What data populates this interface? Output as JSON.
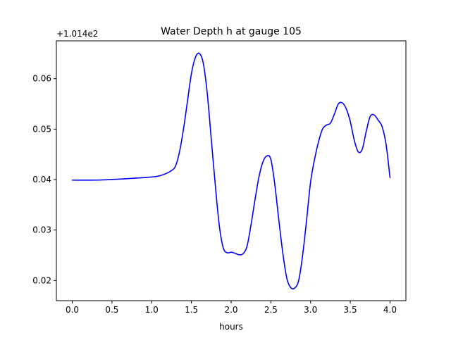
{
  "chart_data": {
    "type": "line",
    "title": "Water Depth h at gauge 105",
    "xlabel": "hours",
    "ylabel": "",
    "offset_label": "+1.014e2",
    "xlim": [
      -0.2,
      4.2
    ],
    "ylim": [
      0.016,
      0.0675
    ],
    "xticks": [
      0.0,
      0.5,
      1.0,
      1.5,
      2.0,
      2.5,
      3.0,
      3.5,
      4.0
    ],
    "xtick_labels": [
      "0.0",
      "0.5",
      "1.0",
      "1.5",
      "2.0",
      "2.5",
      "3.0",
      "3.5",
      "4.0"
    ],
    "yticks": [
      0.02,
      0.03,
      0.04,
      0.05,
      0.06
    ],
    "ytick_labels": [
      "0.02",
      "0.03",
      "0.04",
      "0.05",
      "0.06"
    ],
    "grid": false,
    "legend": "none",
    "series": [
      {
        "color": "#0000ff",
        "x": [
          0.0,
          0.3,
          0.6,
          0.9,
          1.05,
          1.15,
          1.25,
          1.3,
          1.35,
          1.4,
          1.45,
          1.5,
          1.55,
          1.6,
          1.65,
          1.7,
          1.75,
          1.8,
          1.85,
          1.9,
          1.95,
          2.0,
          2.05,
          2.1,
          2.15,
          2.2,
          2.25,
          2.3,
          2.35,
          2.4,
          2.45,
          2.5,
          2.55,
          2.6,
          2.65,
          2.7,
          2.75,
          2.8,
          2.85,
          2.9,
          2.95,
          3.0,
          3.05,
          3.1,
          3.15,
          3.2,
          3.25,
          3.3,
          3.35,
          3.4,
          3.45,
          3.5,
          3.55,
          3.6,
          3.65,
          3.7,
          3.75,
          3.8,
          3.85,
          3.9,
          3.95,
          4.0
        ],
        "y": [
          0.0399,
          0.0399,
          0.0401,
          0.0404,
          0.0406,
          0.041,
          0.0418,
          0.0427,
          0.0455,
          0.05,
          0.0555,
          0.061,
          0.0642,
          0.065,
          0.063,
          0.057,
          0.048,
          0.039,
          0.031,
          0.0265,
          0.0255,
          0.0256,
          0.0254,
          0.0251,
          0.0253,
          0.0268,
          0.031,
          0.036,
          0.0405,
          0.0435,
          0.0447,
          0.044,
          0.039,
          0.032,
          0.0255,
          0.0205,
          0.0186,
          0.0185,
          0.02,
          0.025,
          0.032,
          0.0395,
          0.044,
          0.0475,
          0.05,
          0.0508,
          0.0512,
          0.053,
          0.055,
          0.0552,
          0.054,
          0.0515,
          0.0478,
          0.0455,
          0.046,
          0.0495,
          0.0525,
          0.0528,
          0.0518,
          0.0505,
          0.047,
          0.0404
        ]
      }
    ]
  }
}
